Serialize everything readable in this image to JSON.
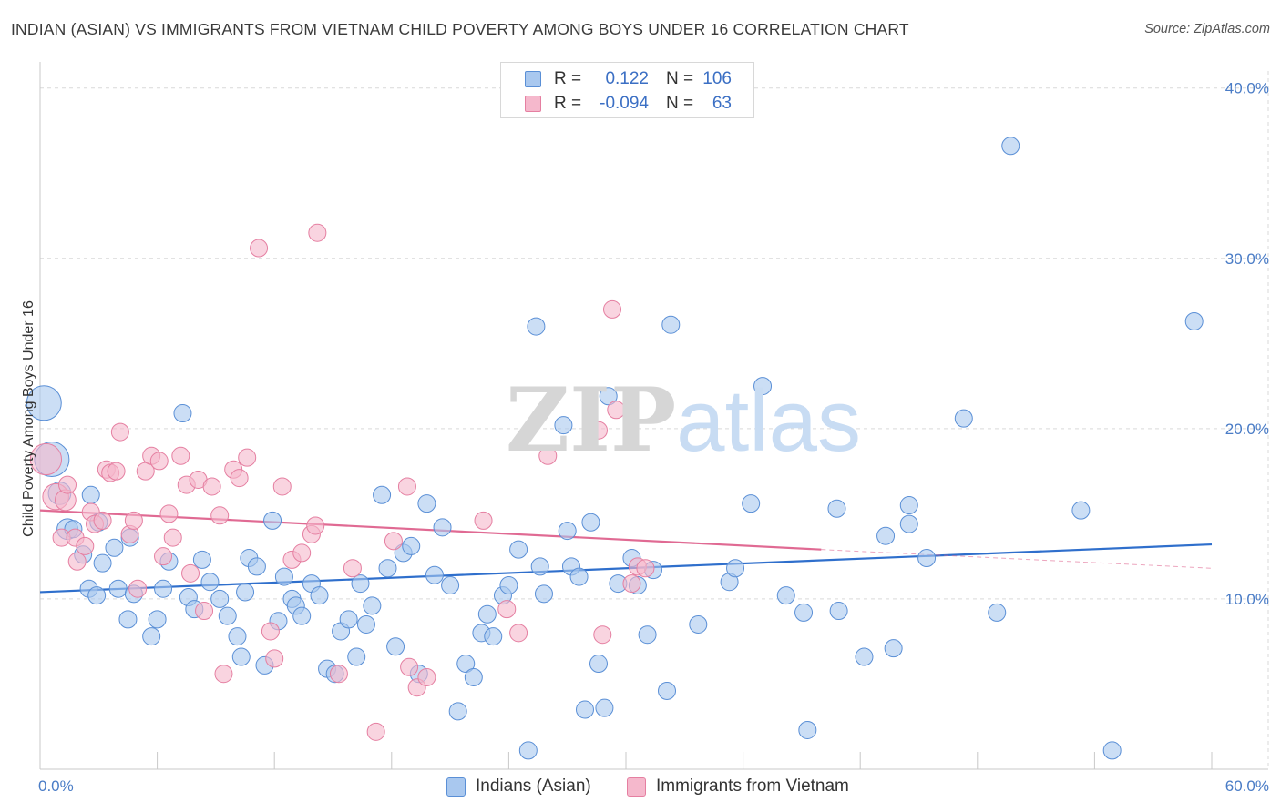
{
  "title": "INDIAN (ASIAN) VS IMMIGRANTS FROM VIETNAM CHILD POVERTY AMONG BOYS UNDER 16 CORRELATION CHART",
  "source": "Source: ZipAtlas.com",
  "watermark": {
    "zip": "ZIP",
    "atlas": "atlas"
  },
  "colors": {
    "blue_fill": "#a9c8ef",
    "blue_stroke": "#5a8fd6",
    "blue_line": "#2f6fcc",
    "pink_fill": "#f5b8cc",
    "pink_stroke": "#e57fa1",
    "pink_line": "#e06a93",
    "grid": "#d9d9d9",
    "tick_label": "#4a7cc6"
  },
  "legend": {
    "rows": [
      {
        "series": "Indians (Asian)",
        "r_label": "R =",
        "r_value": "0.122",
        "n_label": "N =",
        "n_value": "106",
        "color": "#a9c8ef",
        "stroke": "#5a8fd6"
      },
      {
        "series": "Immigrants from Vietnam",
        "r_label": "R =",
        "r_value": "-0.094",
        "n_label": "N =",
        "n_value": "63",
        "color": "#f5b8cc",
        "stroke": "#e57fa1"
      }
    ]
  },
  "bottom_legend": [
    {
      "label": "Indians (Asian)",
      "color": "#a9c8ef",
      "stroke": "#5a8fd6"
    },
    {
      "label": "Immigrants from Vietnam",
      "color": "#f5b8cc",
      "stroke": "#e57fa1"
    }
  ],
  "chart_data": {
    "type": "scatter",
    "title": "INDIAN (ASIAN) VS IMMIGRANTS FROM VIETNAM CHILD POVERTY AMONG BOYS UNDER 16 CORRELATION CHART",
    "xlabel": "",
    "ylabel": "Child Poverty Among Boys Under 16",
    "xlim": [
      0,
      60
    ],
    "ylim": [
      0,
      41
    ],
    "x_tick_labels": [
      {
        "value": 0,
        "label": "0.0%"
      },
      {
        "value": 60,
        "label": "60.0%"
      }
    ],
    "y_tick_labels": [
      {
        "value": 10,
        "label": "10.0%"
      },
      {
        "value": 20,
        "label": "20.0%"
      },
      {
        "value": 30,
        "label": "30.0%"
      },
      {
        "value": 40,
        "label": "40.0%"
      }
    ],
    "x_minor_ticks": [
      0,
      6,
      12,
      18,
      24,
      30,
      36,
      42,
      48,
      54,
      60
    ],
    "grid": true,
    "series": [
      {
        "name": "Indians (Asian)",
        "r": 0.122,
        "n": 106,
        "trend": {
          "x": [
            0,
            60
          ],
          "y": [
            10.4,
            13.2
          ]
        },
        "points": [
          [
            0.2,
            21.5,
            2
          ],
          [
            0.6,
            18.2,
            2
          ],
          [
            1.0,
            16.2,
            1.3
          ],
          [
            1.4,
            14.1,
            1.2
          ],
          [
            1.7,
            14.1,
            1
          ],
          [
            2.2,
            12.6,
            1
          ],
          [
            2.5,
            10.6,
            1
          ],
          [
            2.6,
            16.1,
            1
          ],
          [
            2.9,
            10.2,
            1
          ],
          [
            3.0,
            14.5,
            1
          ],
          [
            3.2,
            12.1,
            1
          ],
          [
            3.8,
            13.0,
            1
          ],
          [
            4.0,
            10.6,
            1
          ],
          [
            4.6,
            13.6,
            1
          ],
          [
            4.5,
            8.8,
            1
          ],
          [
            4.8,
            10.3,
            1
          ],
          [
            5.7,
            7.8,
            1
          ],
          [
            6.0,
            8.8,
            1
          ],
          [
            6.3,
            10.6,
            1
          ],
          [
            6.6,
            12.2,
            1
          ],
          [
            7.3,
            20.9,
            1
          ],
          [
            7.6,
            10.1,
            1
          ],
          [
            7.9,
            9.4,
            1
          ],
          [
            8.3,
            12.3,
            1
          ],
          [
            8.7,
            11.0,
            1
          ],
          [
            9.2,
            10.0,
            1
          ],
          [
            9.6,
            9.0,
            1
          ],
          [
            10.1,
            7.8,
            1
          ],
          [
            10.3,
            6.6,
            1
          ],
          [
            10.5,
            10.4,
            1
          ],
          [
            10.7,
            12.4,
            1
          ],
          [
            11.1,
            11.9,
            1
          ],
          [
            11.5,
            6.1,
            1
          ],
          [
            11.9,
            14.6,
            1
          ],
          [
            12.2,
            8.7,
            1
          ],
          [
            12.5,
            11.3,
            1
          ],
          [
            12.9,
            10.0,
            1
          ],
          [
            13.1,
            9.6,
            1
          ],
          [
            13.4,
            9.0,
            1
          ],
          [
            13.9,
            10.9,
            1
          ],
          [
            14.3,
            10.2,
            1
          ],
          [
            14.7,
            5.9,
            1
          ],
          [
            15.1,
            5.6,
            1
          ],
          [
            15.4,
            8.1,
            1
          ],
          [
            15.8,
            8.8,
            1
          ],
          [
            16.2,
            6.6,
            1
          ],
          [
            16.4,
            10.9,
            1
          ],
          [
            16.7,
            8.5,
            1
          ],
          [
            17.0,
            9.6,
            1
          ],
          [
            17.5,
            16.1,
            1
          ],
          [
            17.8,
            11.8,
            1
          ],
          [
            18.2,
            7.2,
            1
          ],
          [
            18.6,
            12.7,
            1
          ],
          [
            19.0,
            13.1,
            1
          ],
          [
            19.4,
            5.6,
            1
          ],
          [
            19.8,
            15.6,
            1
          ],
          [
            20.2,
            11.4,
            1
          ],
          [
            20.6,
            14.2,
            1
          ],
          [
            21.0,
            10.8,
            1
          ],
          [
            21.4,
            3.4,
            1
          ],
          [
            21.8,
            6.2,
            1
          ],
          [
            22.2,
            5.4,
            1
          ],
          [
            22.6,
            8.0,
            1
          ],
          [
            22.9,
            9.1,
            1
          ],
          [
            23.2,
            7.8,
            1
          ],
          [
            23.7,
            10.2,
            1
          ],
          [
            24.0,
            10.8,
            1
          ],
          [
            24.5,
            12.9,
            1
          ],
          [
            25.0,
            1.1,
            1
          ],
          [
            25.4,
            26.0,
            1
          ],
          [
            25.6,
            11.9,
            1
          ],
          [
            25.8,
            10.3,
            1
          ],
          [
            26.8,
            20.2,
            1
          ],
          [
            27.0,
            14.0,
            1
          ],
          [
            27.2,
            11.9,
            1
          ],
          [
            27.6,
            11.3,
            1
          ],
          [
            27.9,
            3.5,
            1
          ],
          [
            28.2,
            14.5,
            1
          ],
          [
            28.6,
            6.2,
            1
          ],
          [
            28.9,
            3.6,
            1
          ],
          [
            29.1,
            21.9,
            1
          ],
          [
            29.6,
            10.9,
            1
          ],
          [
            30.3,
            12.4,
            1
          ],
          [
            30.6,
            10.8,
            1
          ],
          [
            31.1,
            7.9,
            1
          ],
          [
            31.4,
            11.7,
            1
          ],
          [
            32.1,
            4.6,
            1
          ],
          [
            32.3,
            26.1,
            1
          ],
          [
            33.7,
            8.5,
            1
          ],
          [
            35.3,
            11.0,
            1
          ],
          [
            35.6,
            11.8,
            1
          ],
          [
            36.4,
            15.6,
            1
          ],
          [
            37.0,
            22.5,
            1
          ],
          [
            38.2,
            10.2,
            1
          ],
          [
            39.1,
            9.2,
            1
          ],
          [
            39.3,
            2.3,
            1
          ],
          [
            40.8,
            15.3,
            1
          ],
          [
            40.9,
            9.3,
            1
          ],
          [
            42.2,
            6.6,
            1
          ],
          [
            43.3,
            13.7,
            1
          ],
          [
            43.7,
            7.1,
            1
          ],
          [
            44.5,
            14.4,
            1
          ],
          [
            44.5,
            15.5,
            1
          ],
          [
            45.4,
            12.4,
            1
          ],
          [
            47.3,
            20.6,
            1
          ],
          [
            49.0,
            9.2,
            1
          ],
          [
            49.7,
            36.6,
            1
          ],
          [
            53.3,
            15.2,
            1
          ],
          [
            54.9,
            1.1,
            1
          ],
          [
            59.1,
            26.3,
            1
          ]
        ]
      },
      {
        "name": "Immigrants from Vietnam",
        "r": -0.094,
        "n": 63,
        "trend": {
          "x": [
            0,
            40
          ],
          "y": [
            15.2,
            12.9
          ],
          "dashed_to": {
            "x": 60,
            "y": 11.8
          }
        },
        "points": [
          [
            0.3,
            18.2,
            1.8
          ],
          [
            0.8,
            16.0,
            1.5
          ],
          [
            1.3,
            15.8,
            1.2
          ],
          [
            1.4,
            16.7,
            1
          ],
          [
            1.1,
            13.6,
            1
          ],
          [
            1.8,
            13.6,
            1
          ],
          [
            1.9,
            12.2,
            1
          ],
          [
            2.3,
            13.1,
            1
          ],
          [
            2.6,
            15.1,
            1
          ],
          [
            2.8,
            14.4,
            1
          ],
          [
            3.2,
            14.6,
            1
          ],
          [
            3.4,
            17.6,
            1
          ],
          [
            3.6,
            17.4,
            1
          ],
          [
            3.9,
            17.5,
            1
          ],
          [
            4.1,
            19.8,
            1
          ],
          [
            4.6,
            13.8,
            1
          ],
          [
            4.8,
            14.6,
            1
          ],
          [
            5.0,
            10.6,
            1
          ],
          [
            5.4,
            17.5,
            1
          ],
          [
            5.7,
            18.4,
            1
          ],
          [
            6.1,
            18.1,
            1
          ],
          [
            6.3,
            12.5,
            1
          ],
          [
            6.6,
            15.0,
            1
          ],
          [
            6.8,
            13.6,
            1
          ],
          [
            7.2,
            18.4,
            1
          ],
          [
            7.5,
            16.7,
            1
          ],
          [
            7.7,
            11.5,
            1
          ],
          [
            8.1,
            17.0,
            1
          ],
          [
            8.4,
            9.3,
            1
          ],
          [
            8.8,
            16.6,
            1
          ],
          [
            9.2,
            14.9,
            1
          ],
          [
            9.4,
            5.6,
            1
          ],
          [
            9.9,
            17.6,
            1
          ],
          [
            10.2,
            17.1,
            1
          ],
          [
            10.6,
            18.3,
            1
          ],
          [
            11.2,
            30.6,
            1
          ],
          [
            11.8,
            8.1,
            1
          ],
          [
            12.0,
            6.5,
            1
          ],
          [
            12.4,
            16.6,
            1
          ],
          [
            12.9,
            12.3,
            1
          ],
          [
            13.4,
            12.7,
            1
          ],
          [
            13.9,
            13.8,
            1
          ],
          [
            14.1,
            14.3,
            1
          ],
          [
            14.2,
            31.5,
            1
          ],
          [
            15.3,
            5.6,
            1
          ],
          [
            16.0,
            11.8,
            1
          ],
          [
            17.2,
            2.2,
            1
          ],
          [
            18.1,
            13.4,
            1
          ],
          [
            18.8,
            16.6,
            1
          ],
          [
            19.3,
            4.8,
            1
          ],
          [
            19.8,
            5.4,
            1
          ],
          [
            22.7,
            14.6,
            1
          ],
          [
            23.9,
            9.4,
            1
          ],
          [
            24.5,
            8.0,
            1
          ],
          [
            26.0,
            18.4,
            1
          ],
          [
            28.6,
            19.9,
            1
          ],
          [
            28.8,
            7.9,
            1
          ],
          [
            29.3,
            27.0,
            1
          ],
          [
            29.5,
            21.1,
            1
          ],
          [
            30.3,
            10.9,
            1
          ],
          [
            30.6,
            11.9,
            1
          ],
          [
            18.9,
            6.0,
            1
          ],
          [
            31.0,
            11.8,
            1
          ]
        ]
      }
    ]
  }
}
